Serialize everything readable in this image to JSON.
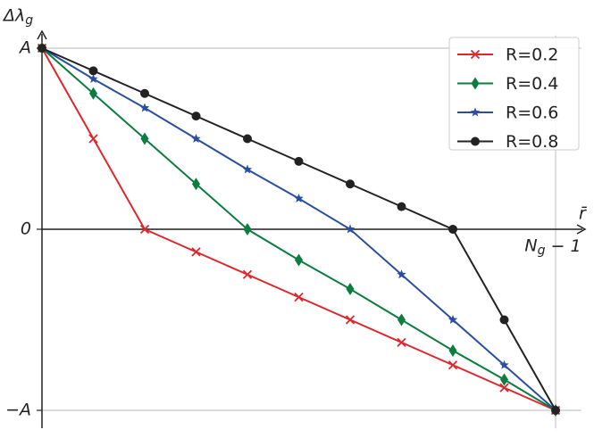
{
  "chart_data": {
    "type": "line",
    "x_label": "r̄",
    "y_label": "Δλ_g",
    "x": [
      0,
      1,
      2,
      3,
      4,
      5,
      6,
      7,
      8,
      9,
      10
    ],
    "series": [
      {
        "name": "R=0.2",
        "color": "#e0262b",
        "marker": "x",
        "values": [
          1,
          0.5,
          0,
          -0.125,
          -0.25,
          -0.375,
          -0.5,
          -0.625,
          -0.75,
          -0.875,
          -1
        ]
      },
      {
        "name": "R=0.4",
        "color": "#0b7d3e",
        "marker": "diamond",
        "values": [
          1,
          0.75,
          0.5,
          0.25,
          0,
          -0.17,
          -0.33,
          -0.5,
          -0.67,
          -0.83,
          -1
        ]
      },
      {
        "name": "R=0.6",
        "color": "#2a4fa0",
        "marker": "star",
        "values": [
          1,
          0.83,
          0.67,
          0.5,
          0.33,
          0.17,
          0,
          -0.25,
          -0.5,
          -0.75,
          -1
        ]
      },
      {
        "name": "R=0.8",
        "color": "#222222",
        "marker": "circle",
        "values": [
          1,
          0.875,
          0.75,
          0.625,
          0.5,
          0.375,
          0.25,
          0.125,
          0,
          -0.5,
          -1
        ]
      }
    ],
    "xlim": [
      0,
      10.5
    ],
    "ylim": [
      -1.1,
      1.07
    ],
    "xticks": [
      {
        "value": 10,
        "label": "N_g − 1"
      }
    ],
    "yticks": [
      {
        "value": 1,
        "label": "A"
      },
      {
        "value": 0,
        "label": "0"
      },
      {
        "value": -1,
        "label": "−A"
      }
    ],
    "grid": true,
    "legend": "upper right"
  }
}
